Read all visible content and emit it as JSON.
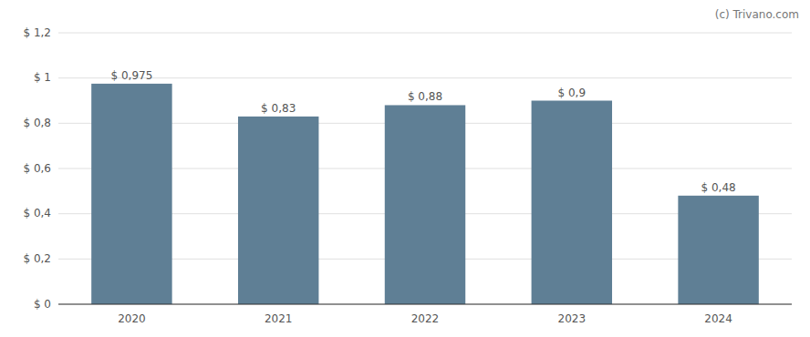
{
  "chart_data": {
    "type": "bar",
    "categories": [
      "2020",
      "2021",
      "2022",
      "2023",
      "2024"
    ],
    "values": [
      0.975,
      0.83,
      0.88,
      0.9,
      0.48
    ],
    "value_labels": [
      "$ 0,975",
      "$ 0,83",
      "$ 0,88",
      "$ 0,9",
      "$ 0,48"
    ],
    "data_labels": true,
    "color": "#5f7f95",
    "ylim": [
      0,
      1.2
    ],
    "yticks": [
      {
        "value": 0,
        "label": "$ 0"
      },
      {
        "value": 0.2,
        "label": "$ 0,2"
      },
      {
        "value": 0.4,
        "label": "$ 0,4"
      },
      {
        "value": 0.6,
        "label": "$ 0,6"
      },
      {
        "value": 0.8,
        "label": "$ 0,8"
      },
      {
        "value": 1.0,
        "label": "$ 1"
      },
      {
        "value": 1.2,
        "label": "$ 1,2"
      }
    ],
    "grid": true,
    "annotations": [
      "(c) Trivano.com"
    ]
  }
}
